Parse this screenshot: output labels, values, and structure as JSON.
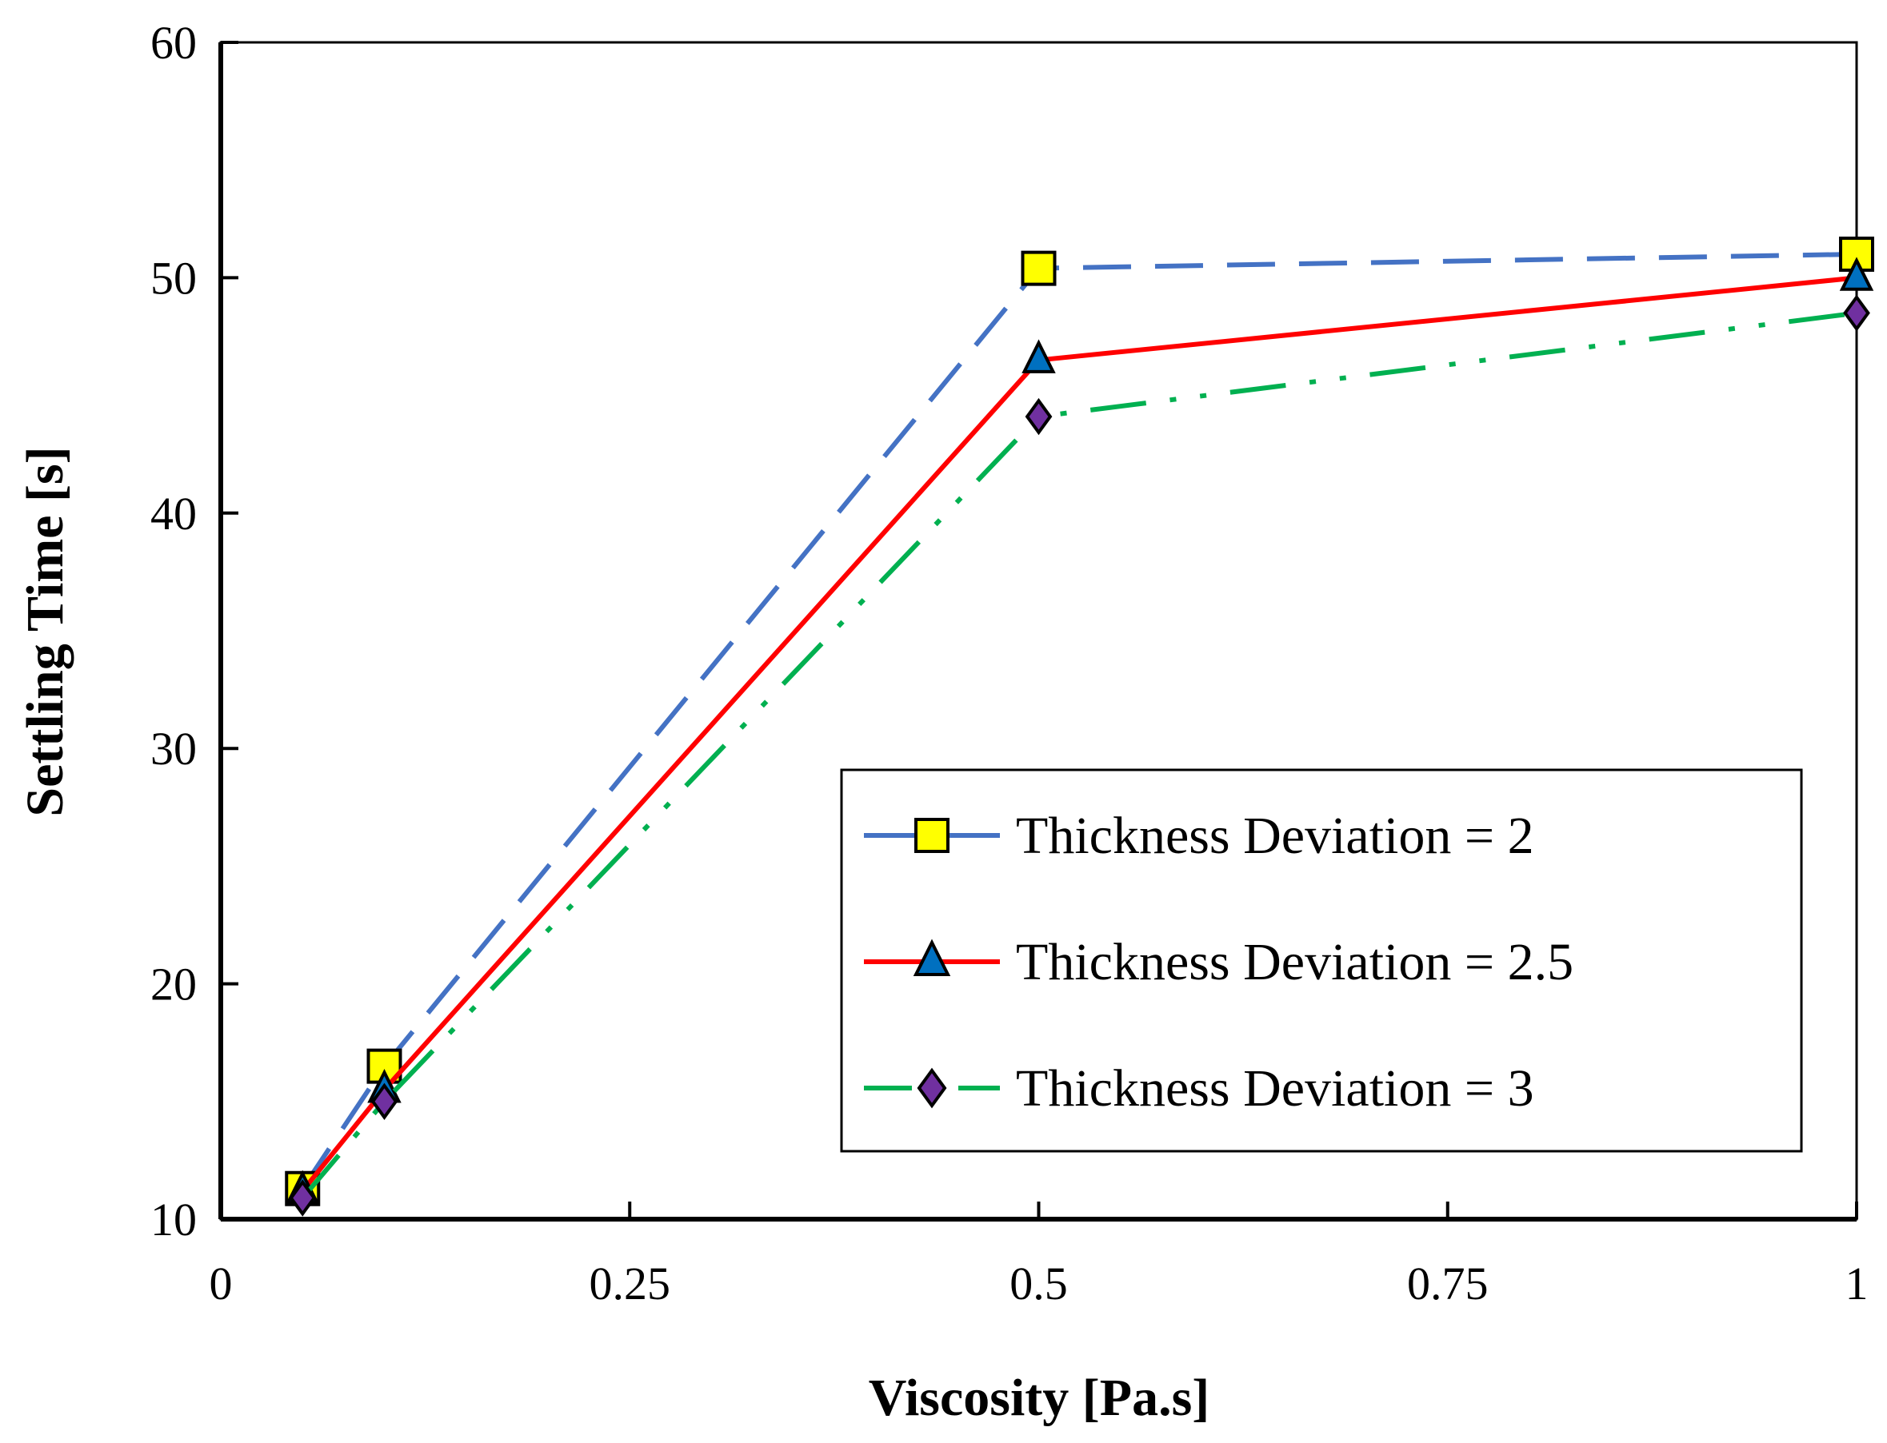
{
  "chart_data": {
    "type": "line",
    "title": "",
    "xlabel": "Viscosity [Pa.s]",
    "ylabel": "Settling Time [s]",
    "xlim": [
      0,
      1
    ],
    "ylim": [
      10,
      60
    ],
    "xticks": [
      0,
      0.25,
      0.5,
      0.75,
      1
    ],
    "xtick_labels": [
      "0",
      "0.25",
      "0.5",
      "0.75",
      "1"
    ],
    "yticks": [
      10,
      20,
      30,
      40,
      50,
      60
    ],
    "ytick_labels": [
      "10",
      "20",
      "30",
      "40",
      "50",
      "60"
    ],
    "grid": false,
    "legend_position": "lower-right",
    "x": [
      0.05,
      0.1,
      0.5,
      1
    ],
    "series": [
      {
        "name": "Thickness Deviation = 2",
        "values": [
          11.3,
          16.5,
          50.4,
          51.0
        ],
        "line_color": "#4472C4",
        "marker": "square",
        "marker_color": "#FFFF00",
        "dash": "dashed"
      },
      {
        "name": "Thickness Deviation = 2.5",
        "values": [
          11.2,
          15.5,
          46.5,
          50.0
        ],
        "line_color": "#FF0000",
        "marker": "triangle",
        "marker_color": "#0070C0",
        "dash": "solid"
      },
      {
        "name": "Thickness Deviation = 3",
        "values": [
          10.9,
          15.0,
          44.1,
          48.5
        ],
        "line_color": "#00B050",
        "marker": "diamond",
        "marker_color": "#7030A0",
        "dash": "dash-dot-dot"
      }
    ]
  }
}
